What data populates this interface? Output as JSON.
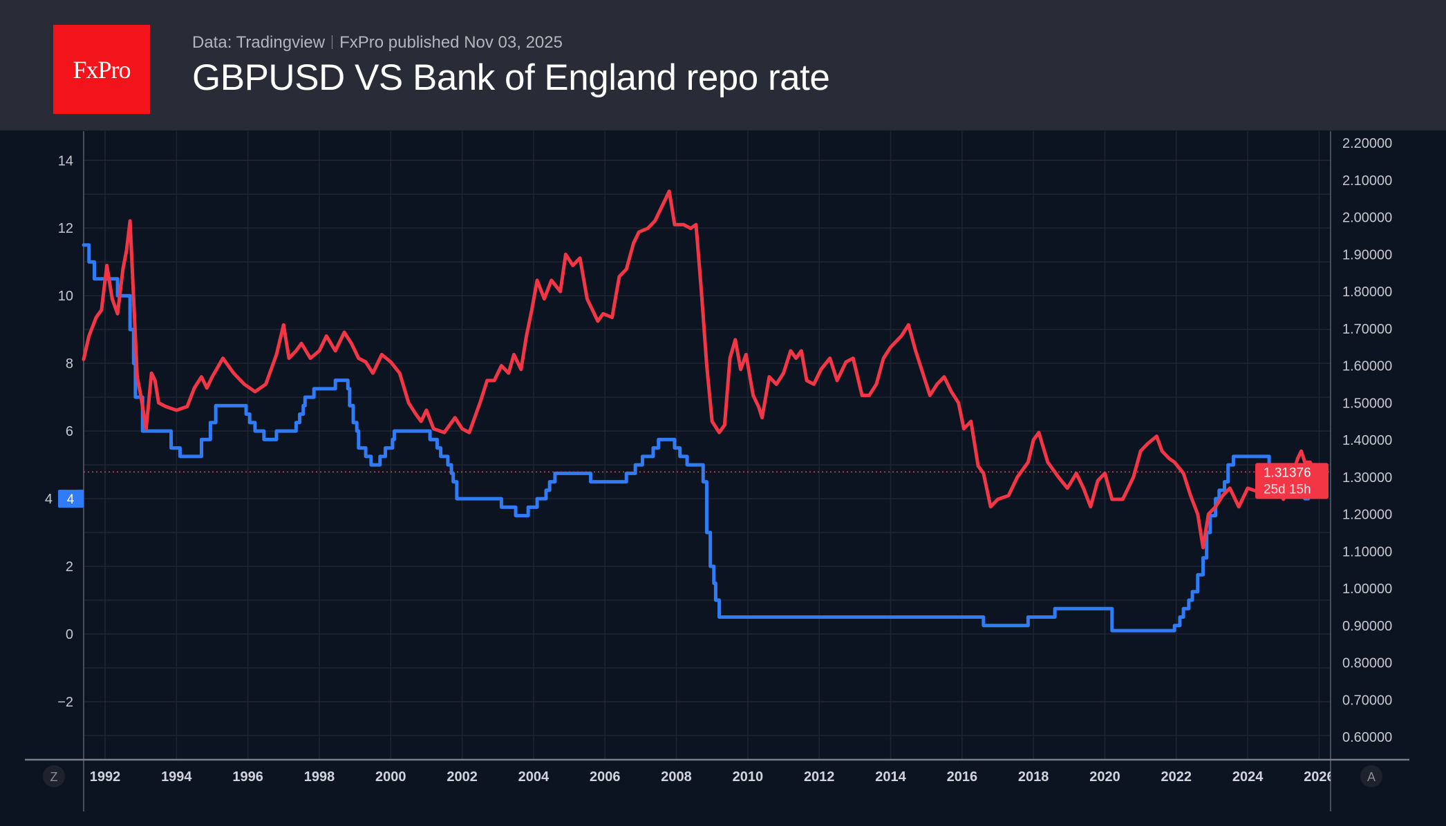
{
  "header": {
    "logo_text": "FxPro",
    "source": "Data: Tradingview",
    "published": "FxPro published Nov 03, 2025",
    "title": "GBPUSD VS Bank of England repo rate"
  },
  "controls": {
    "left_button": "Z",
    "right_button": "A"
  },
  "colors": {
    "gbpusd": "#f23645",
    "repo_rate": "#2f7cf6",
    "header_bg": "#292c37",
    "plot_bg": "#0d1421",
    "logo_bg": "#f2141a"
  },
  "chart_data": {
    "type": "line",
    "title": "GBPUSD VS Bank of England repo rate",
    "x_ticks": [
      "1992",
      "1994",
      "1996",
      "1998",
      "2000",
      "2002",
      "2004",
      "2006",
      "2008",
      "2010",
      "2012",
      "2014",
      "2016",
      "2018",
      "2020",
      "2022",
      "2024",
      "2026"
    ],
    "left_axis": {
      "ticks": [
        "14",
        "12",
        "10",
        "8",
        "6",
        "4",
        "2",
        "0",
        "−2"
      ],
      "range": [
        -3.5,
        15
      ]
    },
    "right_axis": {
      "ticks": [
        "2.20000",
        "2.10000",
        "2.00000",
        "1.90000",
        "1.80000",
        "1.70000",
        "1.60000",
        "1.50000",
        "1.40000",
        "1.30000",
        "1.20000",
        "1.10000",
        "1.00000",
        "0.90000",
        "0.80000",
        "0.70000",
        "0.60000"
      ],
      "range": [
        0.55,
        2.25
      ]
    },
    "grid": true,
    "last_value_labels": {
      "repo_rate": "4",
      "gbpusd": "1.31376",
      "countdown": "25d 15h"
    },
    "series": [
      {
        "key": "repo_rate",
        "axis": "left",
        "step": true,
        "points": [
          [
            1991.4,
            11.5
          ],
          [
            1991.55,
            11
          ],
          [
            1991.7,
            10.5
          ],
          [
            1992.35,
            10
          ],
          [
            1992.7,
            9
          ],
          [
            1992.8,
            8
          ],
          [
            1992.85,
            7
          ],
          [
            1993.05,
            6
          ],
          [
            1993.85,
            5.5
          ],
          [
            1994.1,
            5.25
          ],
          [
            1994.7,
            5.75
          ],
          [
            1994.95,
            6.25
          ],
          [
            1995.1,
            6.75
          ],
          [
            1995.95,
            6.5
          ],
          [
            1996.05,
            6.25
          ],
          [
            1996.2,
            6
          ],
          [
            1996.45,
            5.75
          ],
          [
            1996.8,
            6
          ],
          [
            1997.35,
            6.25
          ],
          [
            1997.45,
            6.5
          ],
          [
            1997.55,
            6.75
          ],
          [
            1997.6,
            7
          ],
          [
            1997.85,
            7.25
          ],
          [
            1998.45,
            7.5
          ],
          [
            1998.8,
            7.25
          ],
          [
            1998.85,
            6.75
          ],
          [
            1998.95,
            6.25
          ],
          [
            1999.05,
            6
          ],
          [
            1999.1,
            5.5
          ],
          [
            1999.3,
            5.25
          ],
          [
            1999.45,
            5
          ],
          [
            1999.7,
            5.25
          ],
          [
            1999.85,
            5.5
          ],
          [
            2000.05,
            5.75
          ],
          [
            2000.1,
            6
          ],
          [
            2001.1,
            5.75
          ],
          [
            2001.3,
            5.5
          ],
          [
            2001.4,
            5.25
          ],
          [
            2001.6,
            5
          ],
          [
            2001.7,
            4.75
          ],
          [
            2001.75,
            4.5
          ],
          [
            2001.85,
            4
          ],
          [
            2003.1,
            3.75
          ],
          [
            2003.5,
            3.5
          ],
          [
            2003.85,
            3.75
          ],
          [
            2004.1,
            4
          ],
          [
            2004.35,
            4.25
          ],
          [
            2004.45,
            4.5
          ],
          [
            2004.6,
            4.75
          ],
          [
            2005.6,
            4.5
          ],
          [
            2006.6,
            4.75
          ],
          [
            2006.85,
            5
          ],
          [
            2007.05,
            5.25
          ],
          [
            2007.35,
            5.5
          ],
          [
            2007.5,
            5.75
          ],
          [
            2007.95,
            5.5
          ],
          [
            2008.1,
            5.25
          ],
          [
            2008.3,
            5
          ],
          [
            2008.75,
            4.5
          ],
          [
            2008.85,
            3
          ],
          [
            2008.95,
            2
          ],
          [
            2009.05,
            1.5
          ],
          [
            2009.1,
            1
          ],
          [
            2009.2,
            0.5
          ],
          [
            2016.6,
            0.25
          ],
          [
            2017.85,
            0.5
          ],
          [
            2018.6,
            0.75
          ],
          [
            2020.2,
            0.1
          ],
          [
            2021.95,
            0.25
          ],
          [
            2022.1,
            0.5
          ],
          [
            2022.2,
            0.75
          ],
          [
            2022.35,
            1
          ],
          [
            2022.45,
            1.25
          ],
          [
            2022.6,
            1.75
          ],
          [
            2022.75,
            2.25
          ],
          [
            2022.85,
            3
          ],
          [
            2022.95,
            3.5
          ],
          [
            2023.1,
            4
          ],
          [
            2023.2,
            4.25
          ],
          [
            2023.35,
            4.5
          ],
          [
            2023.45,
            5
          ],
          [
            2023.6,
            5.25
          ],
          [
            2024.6,
            5
          ],
          [
            2024.85,
            4.75
          ],
          [
            2025.1,
            4.5
          ],
          [
            2025.35,
            4.25
          ],
          [
            2025.6,
            4
          ],
          [
            2025.7,
            4
          ]
        ]
      },
      {
        "key": "gbpusd",
        "axis": "right",
        "step": false,
        "points": [
          [
            1991.4,
            1.617
          ],
          [
            1991.55,
            1.68
          ],
          [
            1991.75,
            1.73
          ],
          [
            1991.9,
            1.75
          ],
          [
            1992.05,
            1.87
          ],
          [
            1992.2,
            1.78
          ],
          [
            1992.35,
            1.74
          ],
          [
            1992.5,
            1.86
          ],
          [
            1992.6,
            1.91
          ],
          [
            1992.7,
            1.99
          ],
          [
            1992.8,
            1.78
          ],
          [
            1992.9,
            1.57
          ],
          [
            1993.0,
            1.52
          ],
          [
            1993.15,
            1.43
          ],
          [
            1993.3,
            1.58
          ],
          [
            1993.4,
            1.56
          ],
          [
            1993.5,
            1.5
          ],
          [
            1993.7,
            1.49
          ],
          [
            1994.0,
            1.48
          ],
          [
            1994.3,
            1.49
          ],
          [
            1994.5,
            1.54
          ],
          [
            1994.7,
            1.57
          ],
          [
            1994.85,
            1.54
          ],
          [
            1995.0,
            1.57
          ],
          [
            1995.3,
            1.62
          ],
          [
            1995.6,
            1.58
          ],
          [
            1995.9,
            1.55
          ],
          [
            1996.2,
            1.53
          ],
          [
            1996.5,
            1.55
          ],
          [
            1996.8,
            1.63
          ],
          [
            1997.0,
            1.71
          ],
          [
            1997.15,
            1.62
          ],
          [
            1997.35,
            1.64
          ],
          [
            1997.5,
            1.66
          ],
          [
            1997.75,
            1.62
          ],
          [
            1998.0,
            1.64
          ],
          [
            1998.2,
            1.68
          ],
          [
            1998.45,
            1.64
          ],
          [
            1998.7,
            1.69
          ],
          [
            1998.9,
            1.66
          ],
          [
            1999.1,
            1.62
          ],
          [
            1999.3,
            1.61
          ],
          [
            1999.5,
            1.58
          ],
          [
            1999.75,
            1.63
          ],
          [
            2000.0,
            1.61
          ],
          [
            2000.25,
            1.58
          ],
          [
            2000.5,
            1.5
          ],
          [
            2000.7,
            1.47
          ],
          [
            2000.85,
            1.45
          ],
          [
            2001.0,
            1.48
          ],
          [
            2001.2,
            1.43
          ],
          [
            2001.5,
            1.42
          ],
          [
            2001.8,
            1.46
          ],
          [
            2002.0,
            1.43
          ],
          [
            2002.2,
            1.42
          ],
          [
            2002.5,
            1.5
          ],
          [
            2002.7,
            1.56
          ],
          [
            2002.9,
            1.56
          ],
          [
            2003.1,
            1.6
          ],
          [
            2003.3,
            1.58
          ],
          [
            2003.45,
            1.63
          ],
          [
            2003.65,
            1.59
          ],
          [
            2003.8,
            1.68
          ],
          [
            2003.95,
            1.75
          ],
          [
            2004.1,
            1.83
          ],
          [
            2004.3,
            1.78
          ],
          [
            2004.5,
            1.83
          ],
          [
            2004.75,
            1.8
          ],
          [
            2004.9,
            1.9
          ],
          [
            2005.1,
            1.87
          ],
          [
            2005.3,
            1.89
          ],
          [
            2005.5,
            1.78
          ],
          [
            2005.8,
            1.72
          ],
          [
            2005.95,
            1.74
          ],
          [
            2006.2,
            1.73
          ],
          [
            2006.4,
            1.84
          ],
          [
            2006.6,
            1.86
          ],
          [
            2006.8,
            1.93
          ],
          [
            2006.95,
            1.96
          ],
          [
            2007.2,
            1.97
          ],
          [
            2007.4,
            1.99
          ],
          [
            2007.6,
            2.03
          ],
          [
            2007.8,
            2.07
          ],
          [
            2007.95,
            1.98
          ],
          [
            2008.2,
            1.98
          ],
          [
            2008.4,
            1.97
          ],
          [
            2008.55,
            1.98
          ],
          [
            2008.7,
            1.8
          ],
          [
            2008.85,
            1.6
          ],
          [
            2009.0,
            1.45
          ],
          [
            2009.2,
            1.42
          ],
          [
            2009.35,
            1.44
          ],
          [
            2009.5,
            1.62
          ],
          [
            2009.65,
            1.67
          ],
          [
            2009.8,
            1.59
          ],
          [
            2009.95,
            1.63
          ],
          [
            2010.15,
            1.52
          ],
          [
            2010.3,
            1.49
          ],
          [
            2010.4,
            1.46
          ],
          [
            2010.6,
            1.57
          ],
          [
            2010.8,
            1.55
          ],
          [
            2011.0,
            1.58
          ],
          [
            2011.2,
            1.64
          ],
          [
            2011.35,
            1.62
          ],
          [
            2011.5,
            1.64
          ],
          [
            2011.65,
            1.56
          ],
          [
            2011.85,
            1.55
          ],
          [
            2012.05,
            1.59
          ],
          [
            2012.3,
            1.62
          ],
          [
            2012.5,
            1.56
          ],
          [
            2012.75,
            1.61
          ],
          [
            2012.95,
            1.62
          ],
          [
            2013.2,
            1.52
          ],
          [
            2013.4,
            1.52
          ],
          [
            2013.6,
            1.55
          ],
          [
            2013.8,
            1.62
          ],
          [
            2014.0,
            1.65
          ],
          [
            2014.3,
            1.68
          ],
          [
            2014.5,
            1.71
          ],
          [
            2014.7,
            1.64
          ],
          [
            2014.9,
            1.58
          ],
          [
            2015.1,
            1.52
          ],
          [
            2015.3,
            1.55
          ],
          [
            2015.5,
            1.57
          ],
          [
            2015.7,
            1.53
          ],
          [
            2015.9,
            1.5
          ],
          [
            2016.05,
            1.43
          ],
          [
            2016.25,
            1.45
          ],
          [
            2016.45,
            1.33
          ],
          [
            2016.6,
            1.31
          ],
          [
            2016.8,
            1.22
          ],
          [
            2017.0,
            1.24
          ],
          [
            2017.3,
            1.25
          ],
          [
            2017.55,
            1.3
          ],
          [
            2017.85,
            1.34
          ],
          [
            2018.0,
            1.4
          ],
          [
            2018.15,
            1.42
          ],
          [
            2018.4,
            1.34
          ],
          [
            2018.7,
            1.3
          ],
          [
            2018.95,
            1.27
          ],
          [
            2019.2,
            1.31
          ],
          [
            2019.4,
            1.27
          ],
          [
            2019.6,
            1.22
          ],
          [
            2019.8,
            1.29
          ],
          [
            2020.0,
            1.31
          ],
          [
            2020.2,
            1.24
          ],
          [
            2020.5,
            1.24
          ],
          [
            2020.8,
            1.3
          ],
          [
            2021.0,
            1.37
          ],
          [
            2021.2,
            1.39
          ],
          [
            2021.45,
            1.41
          ],
          [
            2021.6,
            1.37
          ],
          [
            2021.8,
            1.35
          ],
          [
            2021.95,
            1.34
          ],
          [
            2022.2,
            1.31
          ],
          [
            2022.4,
            1.25
          ],
          [
            2022.6,
            1.2
          ],
          [
            2022.75,
            1.11
          ],
          [
            2022.9,
            1.2
          ],
          [
            2023.1,
            1.22
          ],
          [
            2023.3,
            1.25
          ],
          [
            2023.5,
            1.27
          ],
          [
            2023.75,
            1.22
          ],
          [
            2024.0,
            1.27
          ],
          [
            2024.3,
            1.26
          ],
          [
            2024.5,
            1.28
          ],
          [
            2024.7,
            1.33
          ],
          [
            2024.85,
            1.27
          ],
          [
            2025.0,
            1.24
          ],
          [
            2025.2,
            1.29
          ],
          [
            2025.4,
            1.35
          ],
          [
            2025.5,
            1.37
          ],
          [
            2025.6,
            1.34
          ],
          [
            2025.75,
            1.34
          ],
          [
            2025.85,
            1.314
          ]
        ]
      }
    ]
  }
}
